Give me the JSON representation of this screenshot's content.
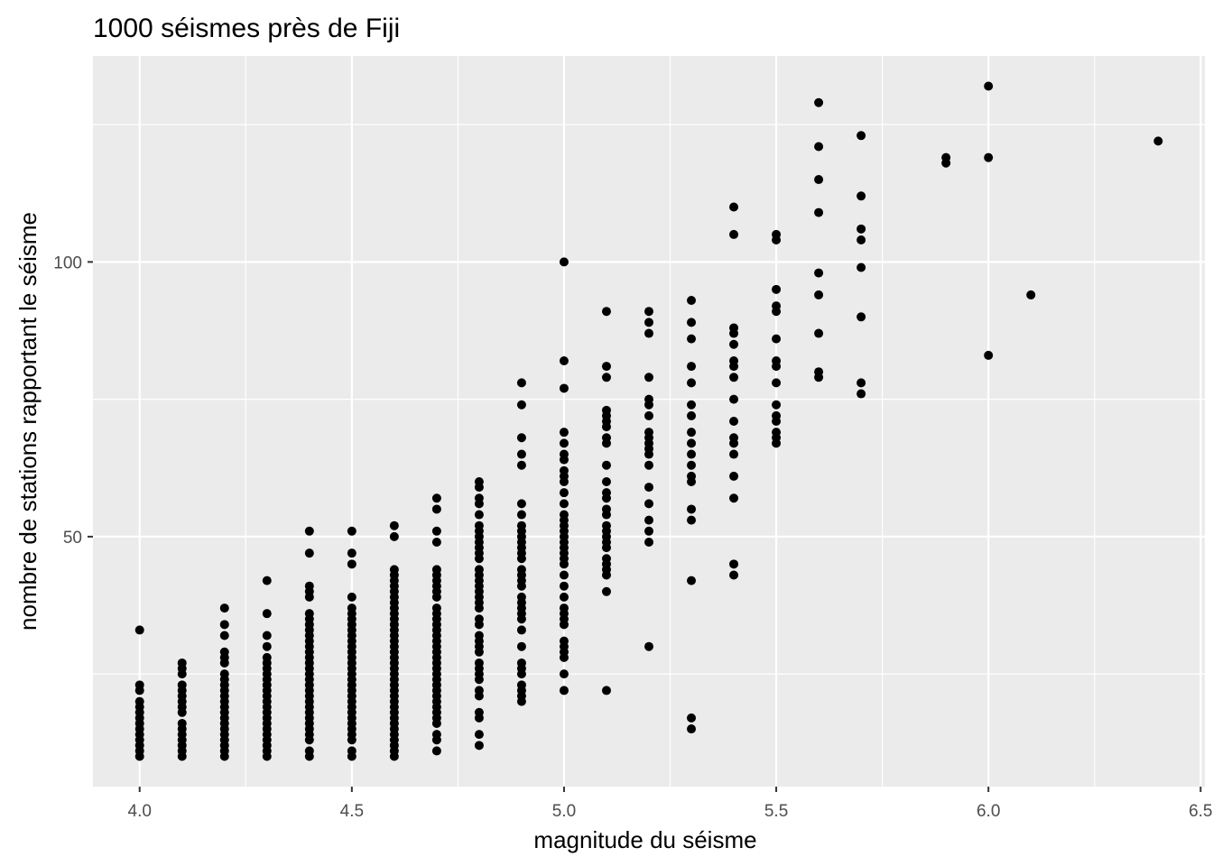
{
  "chart_data": {
    "type": "scatter",
    "title": "1000 séismes près de Fiji",
    "xlabel": "magnitude du séisme",
    "ylabel": "nombre de stations rapportant le séisme",
    "xlim": [
      3.89,
      6.51
    ],
    "ylim": [
      4.5,
      137.5
    ],
    "x_ticks": [
      4.0,
      4.5,
      5.0,
      5.5,
      6.0,
      6.5
    ],
    "x_tick_labels": [
      "4.0",
      "4.5",
      "5.0",
      "5.5",
      "6.0",
      "6.5"
    ],
    "y_ticks": [
      50,
      100
    ],
    "y_tick_labels": [
      "50",
      "100"
    ],
    "grid": true,
    "legend": "none",
    "colors": {
      "panel": "#ebebeb",
      "grid": "#ffffff",
      "point": "#000000",
      "tick_label": "#4d4d4d"
    },
    "points": [
      [
        4.0,
        10
      ],
      [
        4.0,
        11
      ],
      [
        4.0,
        12
      ],
      [
        4.0,
        13
      ],
      [
        4.0,
        14
      ],
      [
        4.0,
        15
      ],
      [
        4.0,
        16
      ],
      [
        4.0,
        17
      ],
      [
        4.0,
        18
      ],
      [
        4.0,
        19
      ],
      [
        4.0,
        20
      ],
      [
        4.0,
        22
      ],
      [
        4.0,
        23
      ],
      [
        4.0,
        33
      ],
      [
        4.1,
        10
      ],
      [
        4.1,
        11
      ],
      [
        4.1,
        12
      ],
      [
        4.1,
        13
      ],
      [
        4.1,
        14
      ],
      [
        4.1,
        15
      ],
      [
        4.1,
        16
      ],
      [
        4.1,
        18
      ],
      [
        4.1,
        19
      ],
      [
        4.1,
        20
      ],
      [
        4.1,
        21
      ],
      [
        4.1,
        22
      ],
      [
        4.1,
        23
      ],
      [
        4.1,
        25
      ],
      [
        4.1,
        26
      ],
      [
        4.1,
        27
      ],
      [
        4.2,
        10
      ],
      [
        4.2,
        11
      ],
      [
        4.2,
        12
      ],
      [
        4.2,
        13
      ],
      [
        4.2,
        14
      ],
      [
        4.2,
        15
      ],
      [
        4.2,
        16
      ],
      [
        4.2,
        17
      ],
      [
        4.2,
        18
      ],
      [
        4.2,
        19
      ],
      [
        4.2,
        20
      ],
      [
        4.2,
        21
      ],
      [
        4.2,
        22
      ],
      [
        4.2,
        23
      ],
      [
        4.2,
        24
      ],
      [
        4.2,
        25
      ],
      [
        4.2,
        27
      ],
      [
        4.2,
        28
      ],
      [
        4.2,
        29
      ],
      [
        4.2,
        32
      ],
      [
        4.2,
        34
      ],
      [
        4.2,
        37
      ],
      [
        4.3,
        10
      ],
      [
        4.3,
        11
      ],
      [
        4.3,
        12
      ],
      [
        4.3,
        13
      ],
      [
        4.3,
        14
      ],
      [
        4.3,
        15
      ],
      [
        4.3,
        16
      ],
      [
        4.3,
        17
      ],
      [
        4.3,
        18
      ],
      [
        4.3,
        19
      ],
      [
        4.3,
        20
      ],
      [
        4.3,
        21
      ],
      [
        4.3,
        22
      ],
      [
        4.3,
        23
      ],
      [
        4.3,
        24
      ],
      [
        4.3,
        25
      ],
      [
        4.3,
        26
      ],
      [
        4.3,
        27
      ],
      [
        4.3,
        28
      ],
      [
        4.3,
        30
      ],
      [
        4.3,
        32
      ],
      [
        4.3,
        36
      ],
      [
        4.3,
        42
      ],
      [
        4.4,
        10
      ],
      [
        4.4,
        11
      ],
      [
        4.4,
        13
      ],
      [
        4.4,
        14
      ],
      [
        4.4,
        15
      ],
      [
        4.4,
        16
      ],
      [
        4.4,
        17
      ],
      [
        4.4,
        18
      ],
      [
        4.4,
        19
      ],
      [
        4.4,
        20
      ],
      [
        4.4,
        21
      ],
      [
        4.4,
        22
      ],
      [
        4.4,
        23
      ],
      [
        4.4,
        24
      ],
      [
        4.4,
        25
      ],
      [
        4.4,
        26
      ],
      [
        4.4,
        27
      ],
      [
        4.4,
        28
      ],
      [
        4.4,
        29
      ],
      [
        4.4,
        30
      ],
      [
        4.4,
        31
      ],
      [
        4.4,
        32
      ],
      [
        4.4,
        33
      ],
      [
        4.4,
        34
      ],
      [
        4.4,
        35
      ],
      [
        4.4,
        36
      ],
      [
        4.4,
        39
      ],
      [
        4.4,
        40
      ],
      [
        4.4,
        41
      ],
      [
        4.4,
        47
      ],
      [
        4.4,
        51
      ],
      [
        4.5,
        10
      ],
      [
        4.5,
        11
      ],
      [
        4.5,
        13
      ],
      [
        4.5,
        14
      ],
      [
        4.5,
        15
      ],
      [
        4.5,
        16
      ],
      [
        4.5,
        17
      ],
      [
        4.5,
        18
      ],
      [
        4.5,
        19
      ],
      [
        4.5,
        20
      ],
      [
        4.5,
        21
      ],
      [
        4.5,
        22
      ],
      [
        4.5,
        23
      ],
      [
        4.5,
        24
      ],
      [
        4.5,
        25
      ],
      [
        4.5,
        26
      ],
      [
        4.5,
        27
      ],
      [
        4.5,
        28
      ],
      [
        4.5,
        29
      ],
      [
        4.5,
        30
      ],
      [
        4.5,
        31
      ],
      [
        4.5,
        32
      ],
      [
        4.5,
        33
      ],
      [
        4.5,
        34
      ],
      [
        4.5,
        35
      ],
      [
        4.5,
        36
      ],
      [
        4.5,
        37
      ],
      [
        4.5,
        39
      ],
      [
        4.5,
        45
      ],
      [
        4.5,
        47
      ],
      [
        4.5,
        51
      ],
      [
        4.6,
        10
      ],
      [
        4.6,
        11
      ],
      [
        4.6,
        12
      ],
      [
        4.6,
        13
      ],
      [
        4.6,
        14
      ],
      [
        4.6,
        15
      ],
      [
        4.6,
        16
      ],
      [
        4.6,
        17
      ],
      [
        4.6,
        18
      ],
      [
        4.6,
        19
      ],
      [
        4.6,
        20
      ],
      [
        4.6,
        21
      ],
      [
        4.6,
        22
      ],
      [
        4.6,
        23
      ],
      [
        4.6,
        24
      ],
      [
        4.6,
        25
      ],
      [
        4.6,
        26
      ],
      [
        4.6,
        27
      ],
      [
        4.6,
        28
      ],
      [
        4.6,
        29
      ],
      [
        4.6,
        30
      ],
      [
        4.6,
        31
      ],
      [
        4.6,
        32
      ],
      [
        4.6,
        33
      ],
      [
        4.6,
        34
      ],
      [
        4.6,
        35
      ],
      [
        4.6,
        36
      ],
      [
        4.6,
        37
      ],
      [
        4.6,
        38
      ],
      [
        4.6,
        39
      ],
      [
        4.6,
        40
      ],
      [
        4.6,
        41
      ],
      [
        4.6,
        42
      ],
      [
        4.6,
        43
      ],
      [
        4.6,
        44
      ],
      [
        4.6,
        50
      ],
      [
        4.6,
        52
      ],
      [
        4.7,
        11
      ],
      [
        4.7,
        13
      ],
      [
        4.7,
        14
      ],
      [
        4.7,
        16
      ],
      [
        4.7,
        17
      ],
      [
        4.7,
        18
      ],
      [
        4.7,
        19
      ],
      [
        4.7,
        20
      ],
      [
        4.7,
        21
      ],
      [
        4.7,
        22
      ],
      [
        4.7,
        23
      ],
      [
        4.7,
        24
      ],
      [
        4.7,
        25
      ],
      [
        4.7,
        26
      ],
      [
        4.7,
        27
      ],
      [
        4.7,
        28
      ],
      [
        4.7,
        29
      ],
      [
        4.7,
        30
      ],
      [
        4.7,
        31
      ],
      [
        4.7,
        32
      ],
      [
        4.7,
        33
      ],
      [
        4.7,
        34
      ],
      [
        4.7,
        35
      ],
      [
        4.7,
        36
      ],
      [
        4.7,
        37
      ],
      [
        4.7,
        39
      ],
      [
        4.7,
        40
      ],
      [
        4.7,
        41
      ],
      [
        4.7,
        42
      ],
      [
        4.7,
        43
      ],
      [
        4.7,
        44
      ],
      [
        4.7,
        49
      ],
      [
        4.7,
        51
      ],
      [
        4.7,
        55
      ],
      [
        4.7,
        57
      ],
      [
        4.8,
        12
      ],
      [
        4.8,
        14
      ],
      [
        4.8,
        17
      ],
      [
        4.8,
        18
      ],
      [
        4.8,
        21
      ],
      [
        4.8,
        22
      ],
      [
        4.8,
        24
      ],
      [
        4.8,
        25
      ],
      [
        4.8,
        26
      ],
      [
        4.8,
        27
      ],
      [
        4.8,
        29
      ],
      [
        4.8,
        30
      ],
      [
        4.8,
        31
      ],
      [
        4.8,
        32
      ],
      [
        4.8,
        34
      ],
      [
        4.8,
        35
      ],
      [
        4.8,
        37
      ],
      [
        4.8,
        38
      ],
      [
        4.8,
        39
      ],
      [
        4.8,
        40
      ],
      [
        4.8,
        41
      ],
      [
        4.8,
        42
      ],
      [
        4.8,
        43
      ],
      [
        4.8,
        44
      ],
      [
        4.8,
        46
      ],
      [
        4.8,
        47
      ],
      [
        4.8,
        48
      ],
      [
        4.8,
        49
      ],
      [
        4.8,
        50
      ],
      [
        4.8,
        51
      ],
      [
        4.8,
        52
      ],
      [
        4.8,
        54
      ],
      [
        4.8,
        56
      ],
      [
        4.8,
        57
      ],
      [
        4.8,
        59
      ],
      [
        4.8,
        60
      ],
      [
        4.9,
        20
      ],
      [
        4.9,
        21
      ],
      [
        4.9,
        22
      ],
      [
        4.9,
        23
      ],
      [
        4.9,
        25
      ],
      [
        4.9,
        26
      ],
      [
        4.9,
        27
      ],
      [
        4.9,
        30
      ],
      [
        4.9,
        33
      ],
      [
        4.9,
        35
      ],
      [
        4.9,
        36
      ],
      [
        4.9,
        37
      ],
      [
        4.9,
        38
      ],
      [
        4.9,
        39
      ],
      [
        4.9,
        41
      ],
      [
        4.9,
        42
      ],
      [
        4.9,
        43
      ],
      [
        4.9,
        44
      ],
      [
        4.9,
        46
      ],
      [
        4.9,
        47
      ],
      [
        4.9,
        48
      ],
      [
        4.9,
        49
      ],
      [
        4.9,
        50
      ],
      [
        4.9,
        51
      ],
      [
        4.9,
        52
      ],
      [
        4.9,
        54
      ],
      [
        4.9,
        56
      ],
      [
        4.9,
        63
      ],
      [
        4.9,
        65
      ],
      [
        4.9,
        68
      ],
      [
        4.9,
        74
      ],
      [
        4.9,
        78
      ],
      [
        5.0,
        22
      ],
      [
        5.0,
        25
      ],
      [
        5.0,
        28
      ],
      [
        5.0,
        29
      ],
      [
        5.0,
        30
      ],
      [
        5.0,
        31
      ],
      [
        5.0,
        34
      ],
      [
        5.0,
        35
      ],
      [
        5.0,
        36
      ],
      [
        5.0,
        37
      ],
      [
        5.0,
        39
      ],
      [
        5.0,
        41
      ],
      [
        5.0,
        43
      ],
      [
        5.0,
        45
      ],
      [
        5.0,
        46
      ],
      [
        5.0,
        47
      ],
      [
        5.0,
        48
      ],
      [
        5.0,
        49
      ],
      [
        5.0,
        50
      ],
      [
        5.0,
        51
      ],
      [
        5.0,
        52
      ],
      [
        5.0,
        53
      ],
      [
        5.0,
        54
      ],
      [
        5.0,
        56
      ],
      [
        5.0,
        58
      ],
      [
        5.0,
        60
      ],
      [
        5.0,
        61
      ],
      [
        5.0,
        62
      ],
      [
        5.0,
        64
      ],
      [
        5.0,
        65
      ],
      [
        5.0,
        67
      ],
      [
        5.0,
        69
      ],
      [
        5.0,
        77
      ],
      [
        5.0,
        82
      ],
      [
        5.0,
        100
      ],
      [
        5.1,
        22
      ],
      [
        5.1,
        40
      ],
      [
        5.1,
        43
      ],
      [
        5.1,
        44
      ],
      [
        5.1,
        45
      ],
      [
        5.1,
        46
      ],
      [
        5.1,
        48
      ],
      [
        5.1,
        49
      ],
      [
        5.1,
        50
      ],
      [
        5.1,
        51
      ],
      [
        5.1,
        52
      ],
      [
        5.1,
        54
      ],
      [
        5.1,
        55
      ],
      [
        5.1,
        57
      ],
      [
        5.1,
        58
      ],
      [
        5.1,
        60
      ],
      [
        5.1,
        63
      ],
      [
        5.1,
        67
      ],
      [
        5.1,
        68
      ],
      [
        5.1,
        70
      ],
      [
        5.1,
        71
      ],
      [
        5.1,
        72
      ],
      [
        5.1,
        73
      ],
      [
        5.1,
        79
      ],
      [
        5.1,
        81
      ],
      [
        5.1,
        91
      ],
      [
        5.2,
        30
      ],
      [
        5.2,
        49
      ],
      [
        5.2,
        51
      ],
      [
        5.2,
        53
      ],
      [
        5.2,
        56
      ],
      [
        5.2,
        59
      ],
      [
        5.2,
        63
      ],
      [
        5.2,
        65
      ],
      [
        5.2,
        66
      ],
      [
        5.2,
        67
      ],
      [
        5.2,
        68
      ],
      [
        5.2,
        69
      ],
      [
        5.2,
        72
      ],
      [
        5.2,
        74
      ],
      [
        5.2,
        75
      ],
      [
        5.2,
        79
      ],
      [
        5.2,
        87
      ],
      [
        5.2,
        89
      ],
      [
        5.2,
        91
      ],
      [
        5.3,
        15
      ],
      [
        5.3,
        17
      ],
      [
        5.3,
        42
      ],
      [
        5.3,
        53
      ],
      [
        5.3,
        55
      ],
      [
        5.3,
        60
      ],
      [
        5.3,
        61
      ],
      [
        5.3,
        63
      ],
      [
        5.3,
        65
      ],
      [
        5.3,
        67
      ],
      [
        5.3,
        69
      ],
      [
        5.3,
        72
      ],
      [
        5.3,
        74
      ],
      [
        5.3,
        78
      ],
      [
        5.3,
        81
      ],
      [
        5.3,
        86
      ],
      [
        5.3,
        89
      ],
      [
        5.3,
        93
      ],
      [
        5.4,
        43
      ],
      [
        5.4,
        45
      ],
      [
        5.4,
        57
      ],
      [
        5.4,
        61
      ],
      [
        5.4,
        65
      ],
      [
        5.4,
        67
      ],
      [
        5.4,
        68
      ],
      [
        5.4,
        71
      ],
      [
        5.4,
        75
      ],
      [
        5.4,
        79
      ],
      [
        5.4,
        81
      ],
      [
        5.4,
        82
      ],
      [
        5.4,
        85
      ],
      [
        5.4,
        87
      ],
      [
        5.4,
        88
      ],
      [
        5.4,
        105
      ],
      [
        5.4,
        110
      ],
      [
        5.5,
        67
      ],
      [
        5.5,
        68
      ],
      [
        5.5,
        69
      ],
      [
        5.5,
        71
      ],
      [
        5.5,
        72
      ],
      [
        5.5,
        74
      ],
      [
        5.5,
        78
      ],
      [
        5.5,
        81
      ],
      [
        5.5,
        82
      ],
      [
        5.5,
        86
      ],
      [
        5.5,
        91
      ],
      [
        5.5,
        92
      ],
      [
        5.5,
        95
      ],
      [
        5.5,
        104
      ],
      [
        5.5,
        105
      ],
      [
        5.6,
        79
      ],
      [
        5.6,
        80
      ],
      [
        5.6,
        87
      ],
      [
        5.6,
        94
      ],
      [
        5.6,
        98
      ],
      [
        5.6,
        109
      ],
      [
        5.6,
        115
      ],
      [
        5.6,
        121
      ],
      [
        5.6,
        129
      ],
      [
        5.7,
        76
      ],
      [
        5.7,
        78
      ],
      [
        5.7,
        90
      ],
      [
        5.7,
        99
      ],
      [
        5.7,
        104
      ],
      [
        5.7,
        106
      ],
      [
        5.7,
        112
      ],
      [
        5.7,
        123
      ],
      [
        5.9,
        118
      ],
      [
        5.9,
        119
      ],
      [
        6.0,
        83
      ],
      [
        6.0,
        119
      ],
      [
        6.0,
        132
      ],
      [
        6.1,
        94
      ],
      [
        6.4,
        122
      ]
    ]
  }
}
